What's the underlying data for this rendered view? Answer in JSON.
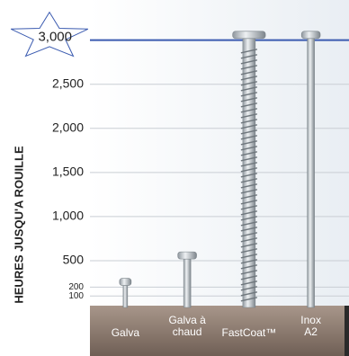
{
  "chart_data": {
    "type": "bar",
    "y_label": "HEURES JUSQU'A ROUILLE",
    "categories": [
      "Galva",
      "Galva à chaud",
      "FastCoat™",
      "Inox A2"
    ],
    "values": [
      300,
      600,
      3100,
      3100
    ],
    "color": "#b9c0c6",
    "ylim": [
      0,
      3200
    ],
    "yticks": [
      100,
      200,
      500,
      {
        "value": 1000,
        "label": "1,000"
      },
      {
        "value": 1500,
        "label": "1,500"
      },
      {
        "value": 2000,
        "label": "2,000"
      },
      {
        "value": 2500,
        "label": "2,500"
      },
      {
        "value": 3000,
        "label": "3,000"
      }
    ],
    "grid": true
  }
}
